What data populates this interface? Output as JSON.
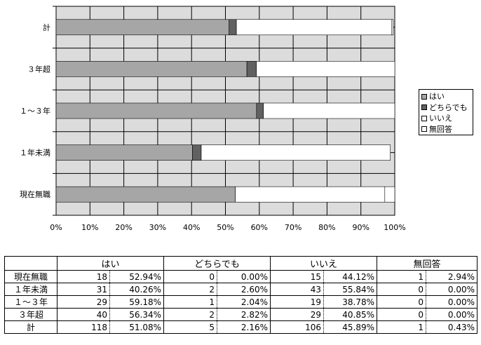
{
  "chart_data": {
    "type": "bar",
    "orientation": "horizontal",
    "stacked": true,
    "normalized": true,
    "categories": [
      "計",
      "３年超",
      "１～３年",
      "１年未満",
      "現在無職"
    ],
    "series": [
      {
        "name": "はい",
        "color": "#a6a6a6",
        "values": [
          51.08,
          56.34,
          59.18,
          40.26,
          52.94
        ]
      },
      {
        "name": "どちらでも",
        "color": "#616161",
        "values": [
          2.16,
          2.82,
          2.04,
          2.6,
          0.0
        ]
      },
      {
        "name": "いいえ",
        "color": "#ffffff",
        "values": [
          45.89,
          40.85,
          38.78,
          55.84,
          44.12
        ]
      },
      {
        "name": "無回答",
        "color": "#ffffff",
        "values": [
          0.43,
          0.0,
          0.0,
          0.0,
          2.94
        ]
      }
    ],
    "xlim": [
      0,
      100
    ],
    "x_ticks": [
      "0%",
      "10%",
      "20%",
      "30%",
      "40%",
      "50%",
      "60%",
      "70%",
      "80%",
      "90%",
      "100%"
    ],
    "grid": true,
    "plot_background": "#dcdcdc",
    "legend_position": "right"
  },
  "table": {
    "headers": [
      "はい",
      "どちらでも",
      "いいえ",
      "無回答"
    ],
    "rows": [
      {
        "label": "現在無職",
        "cells": [
          [
            "18",
            "52.94%"
          ],
          [
            "0",
            "0.00%"
          ],
          [
            "15",
            "44.12%"
          ],
          [
            "1",
            "2.94%"
          ]
        ]
      },
      {
        "label": "１年未満",
        "cells": [
          [
            "31",
            "40.26%"
          ],
          [
            "2",
            "2.60%"
          ],
          [
            "43",
            "55.84%"
          ],
          [
            "0",
            "0.00%"
          ]
        ]
      },
      {
        "label": "１～３年",
        "cells": [
          [
            "29",
            "59.18%"
          ],
          [
            "1",
            "2.04%"
          ],
          [
            "19",
            "38.78%"
          ],
          [
            "0",
            "0.00%"
          ]
        ]
      },
      {
        "label": "３年超",
        "cells": [
          [
            "40",
            "56.34%"
          ],
          [
            "2",
            "2.82%"
          ],
          [
            "29",
            "40.85%"
          ],
          [
            "0",
            "0.00%"
          ]
        ]
      },
      {
        "label": "計",
        "cells": [
          [
            "118",
            "51.08%"
          ],
          [
            "5",
            "2.16%"
          ],
          [
            "106",
            "45.89%"
          ],
          [
            "1",
            "0.43%"
          ]
        ]
      }
    ]
  }
}
